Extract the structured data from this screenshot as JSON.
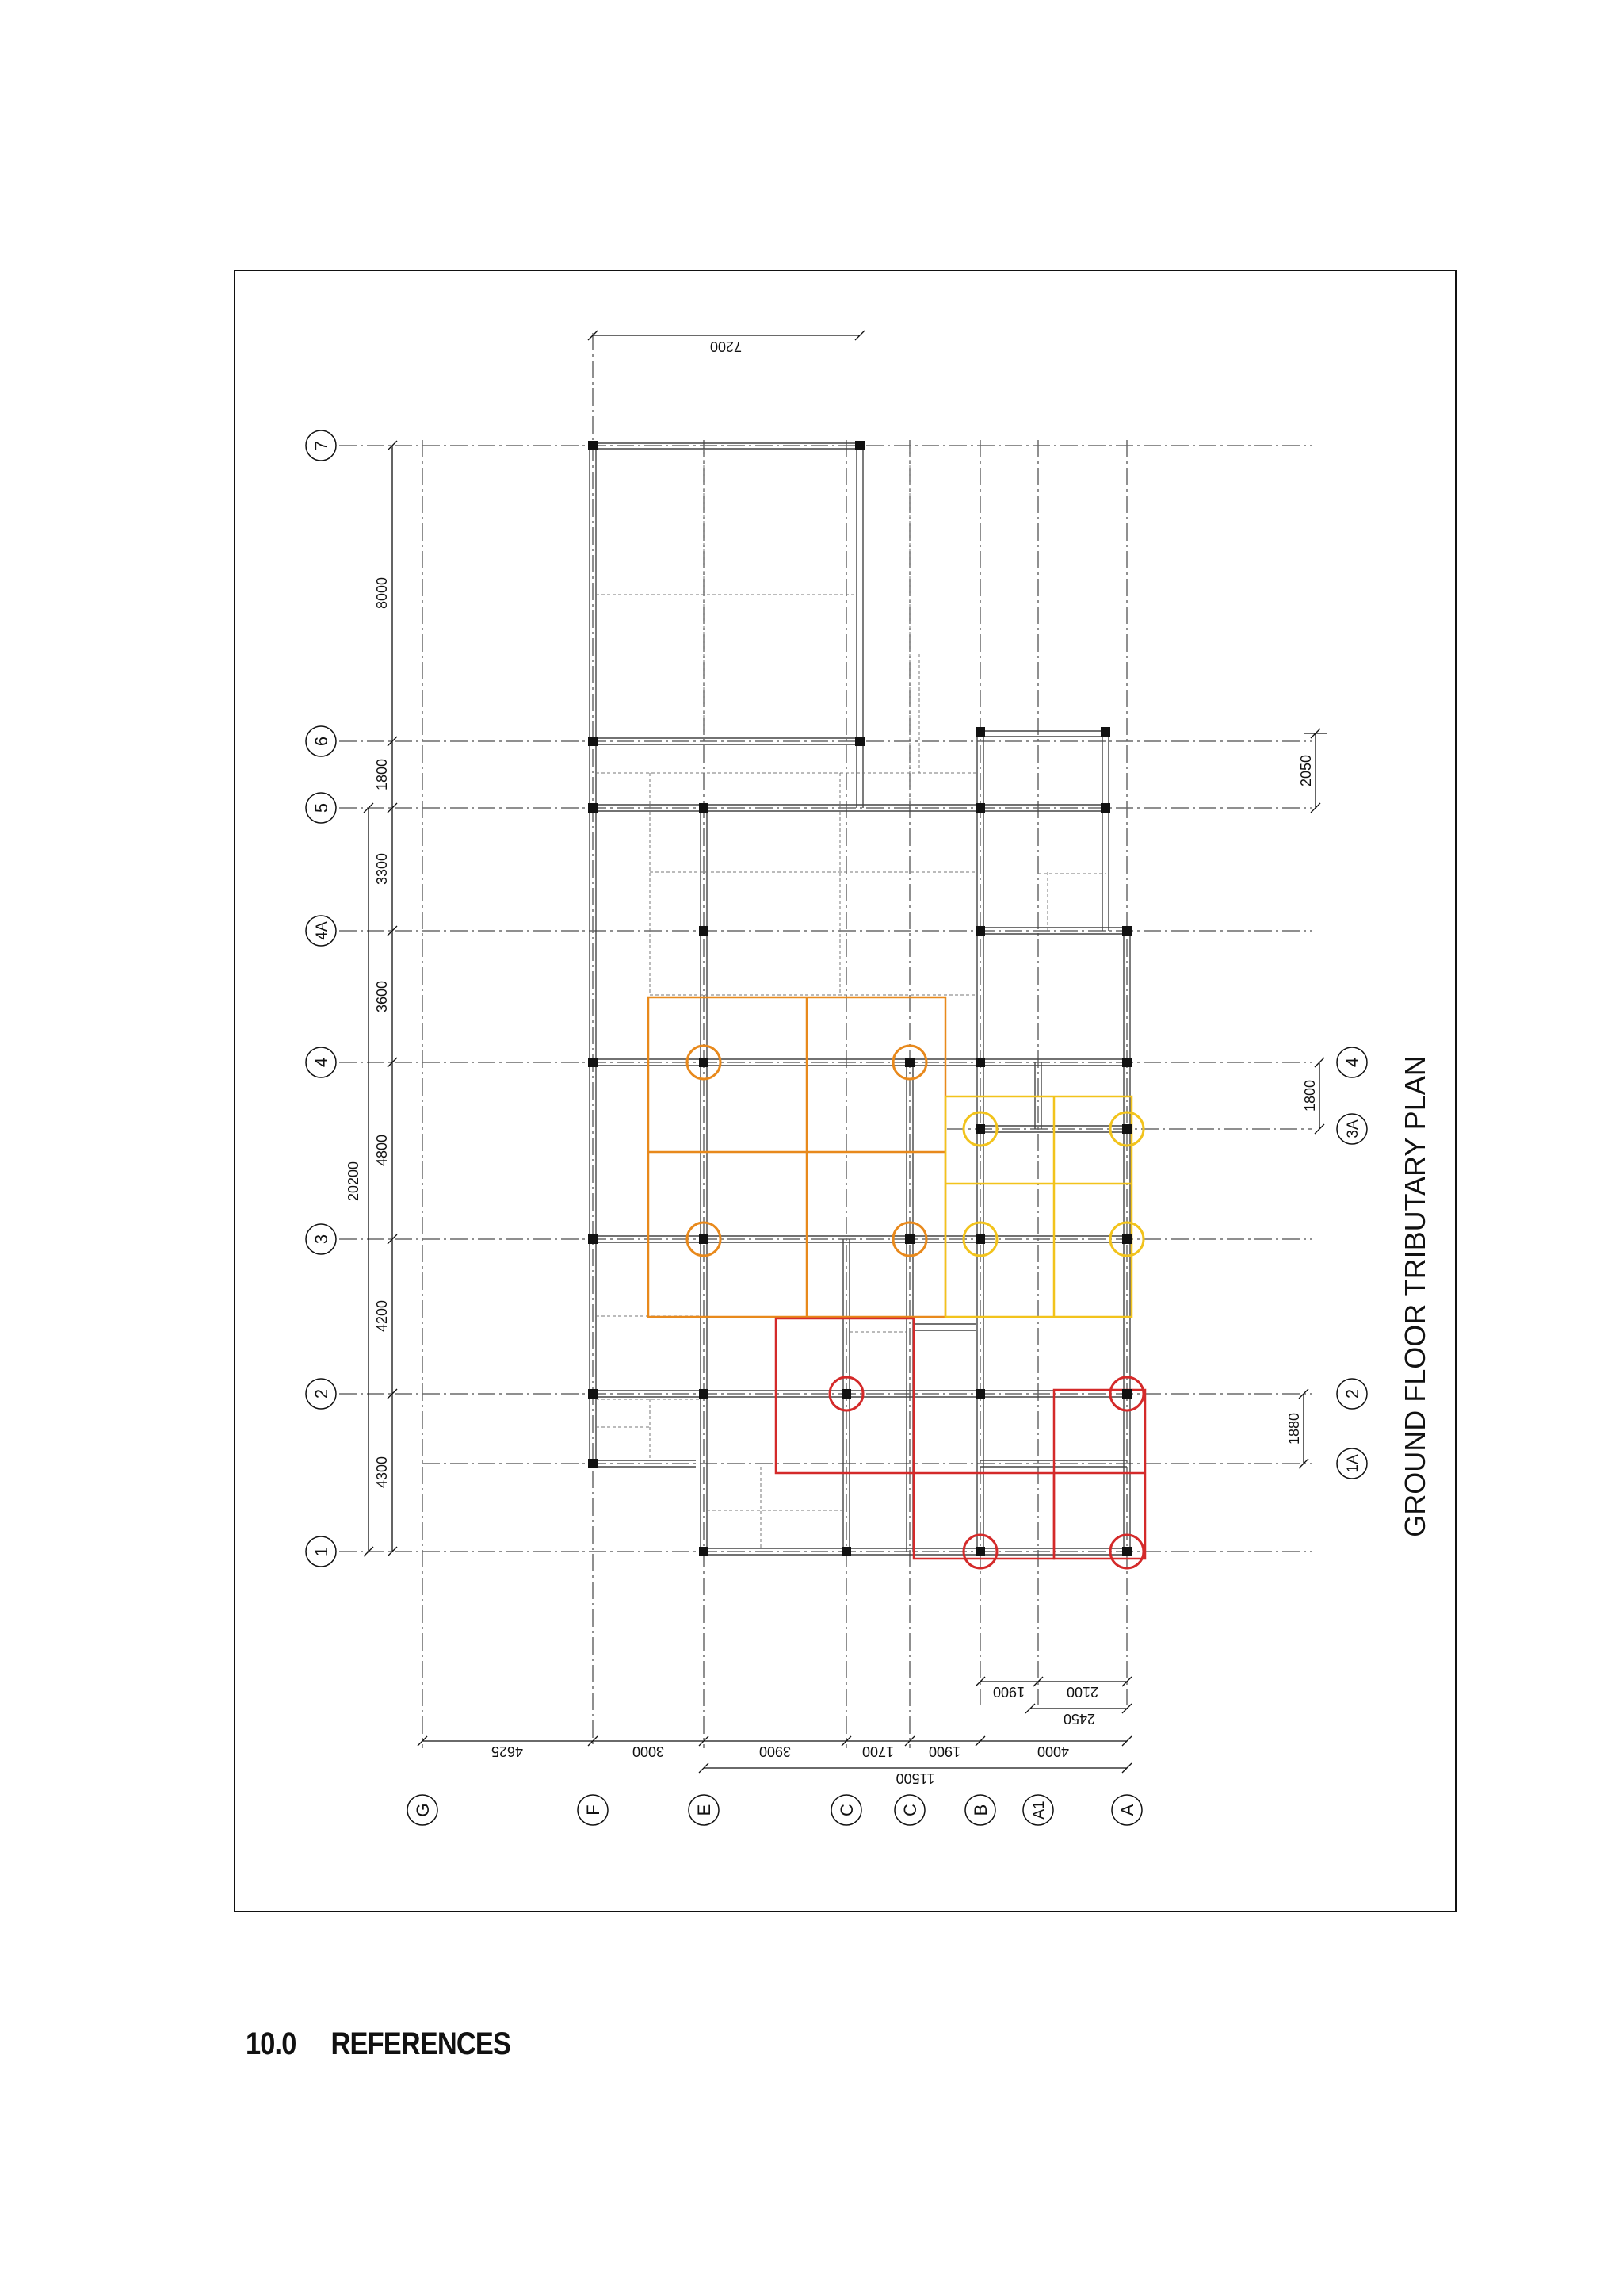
{
  "plan_title": "GROUND FLOOR TRIBUTARY PLAN",
  "colors": {
    "ink": "#111111",
    "grid_line": "#6a6a6a",
    "orange": "#e8891c",
    "yellow": "#f2c31c",
    "red": "#d42a2a"
  },
  "grid_rows": {
    "7": "7",
    "6": "6",
    "5": "5",
    "4A": "4A",
    "4": "4",
    "3": "3",
    "2": "2",
    "1": "1",
    "3A": "3A",
    "2R": "2",
    "1A": "1A",
    "4R": "4"
  },
  "grid_cols": {
    "G": "G",
    "F": "F",
    "E": "E",
    "C": "C",
    "C2": "C",
    "B": "B",
    "A1": "A1",
    "A": "A"
  },
  "dims": {
    "top_7200": "7200",
    "d8000": "8000",
    "d1800": "1800",
    "d3300": "3300",
    "d3600": "3600",
    "d4800": "4800",
    "d4200": "4200",
    "d4300": "4300",
    "d20200": "20200",
    "r2050": "2050",
    "r1800": "1800",
    "r1880": "1880",
    "b4625": "4625",
    "b3000": "3000",
    "b3900": "3900",
    "b1700": "1700",
    "b1900": "1900",
    "b4000": "4000",
    "b11500": "11500",
    "b1900b": "1900",
    "b2100": "2100",
    "b2450": "2450"
  },
  "section": {
    "number": "10.0",
    "title": "REFERENCES"
  }
}
